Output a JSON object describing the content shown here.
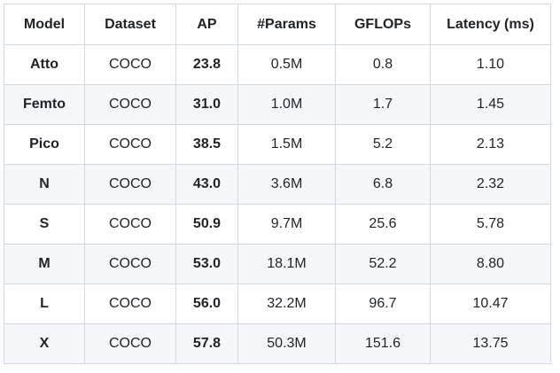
{
  "colors": {
    "background": "#ffffff",
    "border": "#d2d9e0",
    "stripe": "#f5f7fa",
    "text": "#1f2328"
  },
  "chart_data": {
    "type": "table",
    "title": "",
    "columns": [
      "Model",
      "Dataset",
      "AP",
      "#Params",
      "GFLOPs",
      "Latency (ms)"
    ],
    "rows": [
      [
        "Atto",
        "COCO",
        "23.8",
        "0.5M",
        "0.8",
        "1.10"
      ],
      [
        "Femto",
        "COCO",
        "31.0",
        "1.0M",
        "1.7",
        "1.45"
      ],
      [
        "Pico",
        "COCO",
        "38.5",
        "1.5M",
        "5.2",
        "2.13"
      ],
      [
        "N",
        "COCO",
        "43.0",
        "3.6M",
        "6.8",
        "2.32"
      ],
      [
        "S",
        "COCO",
        "50.9",
        "9.7M",
        "25.6",
        "5.78"
      ],
      [
        "M",
        "COCO",
        "53.0",
        "18.1M",
        "52.2",
        "8.80"
      ],
      [
        "L",
        "COCO",
        "56.0",
        "32.2M",
        "96.7",
        "10.47"
      ],
      [
        "X",
        "COCO",
        "57.8",
        "50.3M",
        "151.6",
        "13.75"
      ]
    ],
    "layout": {
      "bold_columns": [
        "Model",
        "AP"
      ],
      "striping": "even-data-rows",
      "cell_alignment": "center",
      "grid": "all-borders"
    }
  }
}
